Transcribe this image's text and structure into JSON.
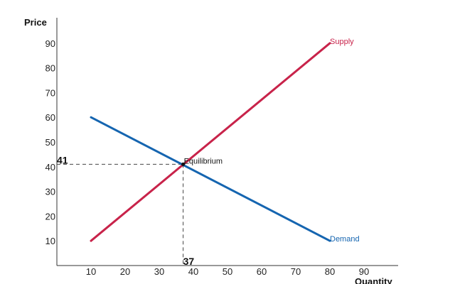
{
  "chart_data": {
    "type": "line",
    "title": "",
    "xlabel": "Quantity",
    "ylabel": "Price",
    "xlim": [
      0,
      100
    ],
    "ylim": [
      0,
      100
    ],
    "xticks": [
      10,
      20,
      30,
      40,
      50,
      60,
      70,
      80,
      90
    ],
    "yticks": [
      10,
      20,
      30,
      40,
      50,
      60,
      70,
      80,
      90
    ],
    "grid": false,
    "legend": "none",
    "series": [
      {
        "name": "Supply",
        "color": "#c8234a",
        "points": [
          [
            10,
            10
          ],
          [
            80,
            90
          ]
        ]
      },
      {
        "name": "Demand",
        "color": "#1565b0",
        "points": [
          [
            10,
            60
          ],
          [
            80,
            10
          ]
        ]
      }
    ],
    "equilibrium": {
      "label": "Equilibrium",
      "x": 37,
      "y": 41,
      "x_label": "37",
      "y_label": "41"
    }
  }
}
